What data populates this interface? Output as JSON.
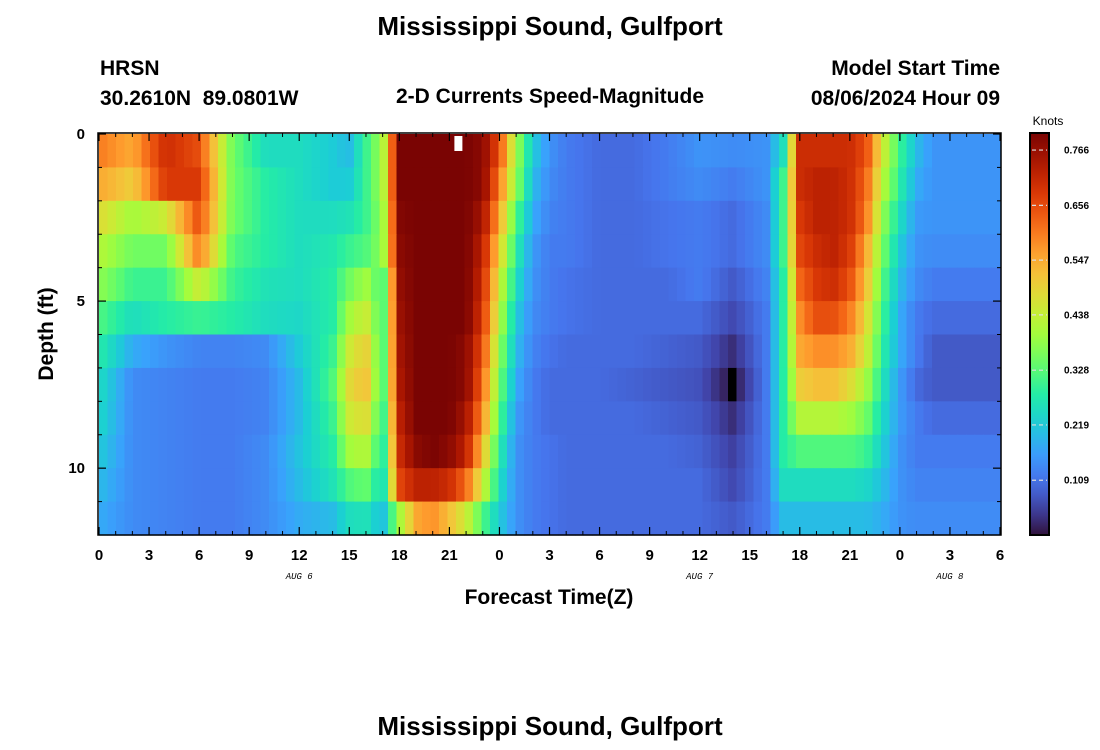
{
  "page": {
    "title": "Mississippi Sound, Gulfport",
    "title_bottom": "Mississippi Sound, Gulfport",
    "station_id": "HRSN",
    "station_coords": "30.2610N  89.0801W",
    "product": "2-D Currents Speed-Magnitude",
    "model_start_label": "Model Start Time",
    "model_start_value": "08/06/2024 Hour 09"
  },
  "chart_data": {
    "type": "heatmap",
    "xlabel": "Forecast Time(Z)",
    "ylabel": "Depth (ft)",
    "x_tick_labels": [
      "0",
      "3",
      "6",
      "9",
      "12",
      "15",
      "18",
      "21",
      "0",
      "3",
      "6",
      "9",
      "12",
      "15",
      "18",
      "21",
      "0",
      "3",
      "6"
    ],
    "date_labels": [
      {
        "label": "AUG 6",
        "at_hour": 12
      },
      {
        "label": "AUG 7",
        "at_hour": 36
      },
      {
        "label": "AUG 8",
        "at_hour": 51
      }
    ],
    "xlim_hours": [
      0,
      54
    ],
    "y_ticks": [
      0,
      5,
      10
    ],
    "ylim_ft": [
      0,
      12
    ],
    "colorbar": {
      "title": "Knots",
      "ticks": [
        "0.766",
        "0.656",
        "0.547",
        "0.438",
        "0.328",
        "0.219",
        "0.109"
      ],
      "tick_values": [
        0.766,
        0.656,
        0.547,
        0.438,
        0.328,
        0.219,
        0.109
      ],
      "range": [
        0.0,
        0.8
      ]
    },
    "depths_ft": [
      0.5,
      1.5,
      2.5,
      3.5,
      4.5,
      5.5,
      6.5,
      7.5,
      8.5,
      9.5,
      10.5,
      11.5
    ],
    "time_anchors_hours": [
      0,
      2,
      4,
      6,
      8,
      10,
      12,
      14,
      15,
      16,
      17,
      18,
      19,
      20,
      21,
      22,
      23,
      24,
      25,
      26,
      27,
      28,
      30,
      32,
      34,
      36,
      38,
      40,
      41,
      42,
      43,
      44,
      45,
      46,
      47,
      48,
      49,
      50,
      51,
      52,
      54
    ],
    "speed_knots": [
      [
        0.6,
        0.55,
        0.7,
        0.65,
        0.35,
        0.25,
        0.25,
        0.22,
        0.2,
        0.3,
        0.4,
        0.8,
        0.8,
        0.8,
        0.8,
        0.8,
        0.78,
        0.65,
        0.4,
        0.22,
        0.15,
        0.12,
        0.1,
        0.1,
        0.12,
        0.15,
        0.14,
        0.15,
        0.25,
        0.7,
        0.7,
        0.7,
        0.7,
        0.65,
        0.45,
        0.3,
        0.2,
        0.15,
        0.15,
        0.15,
        0.15
      ],
      [
        0.55,
        0.5,
        0.68,
        0.68,
        0.35,
        0.28,
        0.25,
        0.22,
        0.22,
        0.3,
        0.4,
        0.8,
        0.8,
        0.8,
        0.8,
        0.8,
        0.78,
        0.6,
        0.38,
        0.2,
        0.14,
        0.12,
        0.1,
        0.1,
        0.12,
        0.14,
        0.12,
        0.15,
        0.3,
        0.7,
        0.72,
        0.72,
        0.7,
        0.62,
        0.42,
        0.28,
        0.18,
        0.15,
        0.15,
        0.15,
        0.15
      ],
      [
        0.48,
        0.4,
        0.45,
        0.65,
        0.35,
        0.28,
        0.25,
        0.25,
        0.26,
        0.3,
        0.38,
        0.79,
        0.8,
        0.8,
        0.8,
        0.8,
        0.75,
        0.55,
        0.32,
        0.18,
        0.13,
        0.12,
        0.1,
        0.1,
        0.11,
        0.12,
        0.1,
        0.14,
        0.3,
        0.68,
        0.72,
        0.72,
        0.7,
        0.6,
        0.38,
        0.25,
        0.16,
        0.15,
        0.15,
        0.15,
        0.15
      ],
      [
        0.42,
        0.35,
        0.35,
        0.6,
        0.32,
        0.28,
        0.25,
        0.27,
        0.3,
        0.32,
        0.38,
        0.78,
        0.8,
        0.8,
        0.8,
        0.8,
        0.72,
        0.5,
        0.28,
        0.16,
        0.12,
        0.12,
        0.1,
        0.1,
        0.11,
        0.12,
        0.1,
        0.14,
        0.3,
        0.66,
        0.7,
        0.72,
        0.68,
        0.55,
        0.35,
        0.22,
        0.15,
        0.14,
        0.14,
        0.14,
        0.14
      ],
      [
        0.38,
        0.3,
        0.3,
        0.45,
        0.3,
        0.26,
        0.25,
        0.28,
        0.35,
        0.4,
        0.3,
        0.77,
        0.8,
        0.8,
        0.8,
        0.8,
        0.7,
        0.45,
        0.25,
        0.15,
        0.12,
        0.11,
        0.1,
        0.1,
        0.1,
        0.12,
        0.08,
        0.13,
        0.28,
        0.62,
        0.68,
        0.7,
        0.65,
        0.52,
        0.32,
        0.2,
        0.14,
        0.12,
        0.12,
        0.12,
        0.12
      ],
      [
        0.32,
        0.25,
        0.28,
        0.3,
        0.28,
        0.25,
        0.24,
        0.28,
        0.4,
        0.45,
        0.3,
        0.76,
        0.8,
        0.8,
        0.8,
        0.8,
        0.68,
        0.42,
        0.22,
        0.14,
        0.12,
        0.11,
        0.1,
        0.1,
        0.1,
        0.1,
        0.06,
        0.12,
        0.28,
        0.58,
        0.65,
        0.65,
        0.6,
        0.48,
        0.3,
        0.18,
        0.12,
        0.1,
        0.1,
        0.1,
        0.1
      ],
      [
        0.28,
        0.18,
        0.15,
        0.13,
        0.13,
        0.14,
        0.22,
        0.3,
        0.45,
        0.5,
        0.3,
        0.75,
        0.8,
        0.8,
        0.8,
        0.78,
        0.65,
        0.38,
        0.2,
        0.13,
        0.11,
        0.1,
        0.1,
        0.1,
        0.09,
        0.08,
        0.03,
        0.12,
        0.28,
        0.55,
        0.58,
        0.58,
        0.55,
        0.45,
        0.28,
        0.18,
        0.12,
        0.08,
        0.08,
        0.08,
        0.08
      ],
      [
        0.25,
        0.14,
        0.13,
        0.12,
        0.12,
        0.13,
        0.2,
        0.32,
        0.48,
        0.52,
        0.3,
        0.74,
        0.8,
        0.8,
        0.8,
        0.78,
        0.62,
        0.35,
        0.18,
        0.12,
        0.1,
        0.1,
        0.1,
        0.09,
        0.08,
        0.07,
        0.0,
        0.12,
        0.28,
        0.5,
        0.52,
        0.52,
        0.48,
        0.4,
        0.26,
        0.16,
        0.1,
        0.08,
        0.08,
        0.08,
        0.08
      ],
      [
        0.24,
        0.14,
        0.13,
        0.12,
        0.12,
        0.13,
        0.2,
        0.3,
        0.45,
        0.48,
        0.28,
        0.72,
        0.8,
        0.8,
        0.8,
        0.75,
        0.58,
        0.32,
        0.16,
        0.12,
        0.1,
        0.1,
        0.1,
        0.1,
        0.09,
        0.08,
        0.03,
        0.12,
        0.28,
        0.42,
        0.42,
        0.42,
        0.4,
        0.35,
        0.24,
        0.16,
        0.12,
        0.1,
        0.1,
        0.1,
        0.1
      ],
      [
        0.22,
        0.14,
        0.13,
        0.12,
        0.12,
        0.14,
        0.21,
        0.28,
        0.4,
        0.42,
        0.26,
        0.7,
        0.78,
        0.8,
        0.78,
        0.72,
        0.52,
        0.28,
        0.15,
        0.12,
        0.11,
        0.1,
        0.1,
        0.1,
        0.1,
        0.09,
        0.05,
        0.12,
        0.28,
        0.32,
        0.32,
        0.32,
        0.32,
        0.3,
        0.22,
        0.15,
        0.12,
        0.12,
        0.12,
        0.12,
        0.12
      ],
      [
        0.2,
        0.14,
        0.13,
        0.12,
        0.12,
        0.14,
        0.2,
        0.26,
        0.32,
        0.34,
        0.24,
        0.66,
        0.72,
        0.72,
        0.7,
        0.62,
        0.45,
        0.25,
        0.15,
        0.12,
        0.11,
        0.1,
        0.1,
        0.1,
        0.1,
        0.1,
        0.06,
        0.12,
        0.25,
        0.25,
        0.25,
        0.25,
        0.25,
        0.24,
        0.2,
        0.15,
        0.13,
        0.13,
        0.13,
        0.13,
        0.13
      ],
      [
        0.18,
        0.14,
        0.13,
        0.12,
        0.12,
        0.14,
        0.18,
        0.2,
        0.25,
        0.26,
        0.2,
        0.4,
        0.55,
        0.58,
        0.52,
        0.45,
        0.32,
        0.22,
        0.15,
        0.12,
        0.11,
        0.1,
        0.1,
        0.1,
        0.1,
        0.1,
        0.08,
        0.12,
        0.2,
        0.2,
        0.2,
        0.2,
        0.2,
        0.2,
        0.18,
        0.15,
        0.14,
        0.14,
        0.14,
        0.14,
        0.14
      ]
    ]
  }
}
